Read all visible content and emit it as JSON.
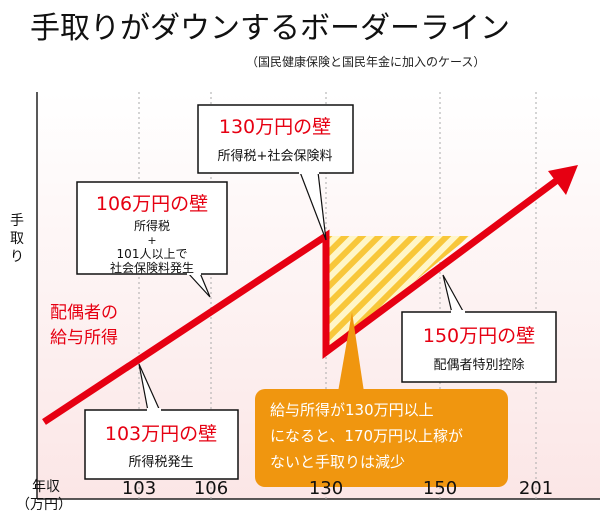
{
  "title": "手取りがダウンするボーダーライン",
  "subtitle": "（国民健康保険と国民年金に加入のケース）",
  "y_axis_label": "手取り",
  "x_axis_label": [
    "年収",
    "（万円）"
  ],
  "x_ticks": [
    "103",
    "106",
    "130",
    "150",
    "201"
  ],
  "line_label": [
    "配偶者の",
    "給与所得"
  ],
  "callouts": {
    "wall130": {
      "title": "130万円の壁",
      "lines": [
        "所得税+社会保険料"
      ]
    },
    "wall106": {
      "title": "106万円の壁",
      "lines": [
        "所得税",
        "+",
        "101人以上で",
        "社会保険料発生"
      ]
    },
    "wall103": {
      "title": "103万円の壁",
      "lines": [
        "所得税発生"
      ]
    },
    "wall150": {
      "title": "150万円の壁",
      "lines": [
        "配偶者特別控除"
      ]
    },
    "note": {
      "lines": [
        "給与所得が130万円以上",
        "になると、170万円以上稼が",
        "ないと手取りは減少"
      ]
    }
  },
  "colors": {
    "line": "#e60012",
    "accent_text": "#e60012",
    "note_bg": "#f0960f",
    "hatch": "#f8c73a",
    "plot_bg": "#fdf0f0"
  }
}
